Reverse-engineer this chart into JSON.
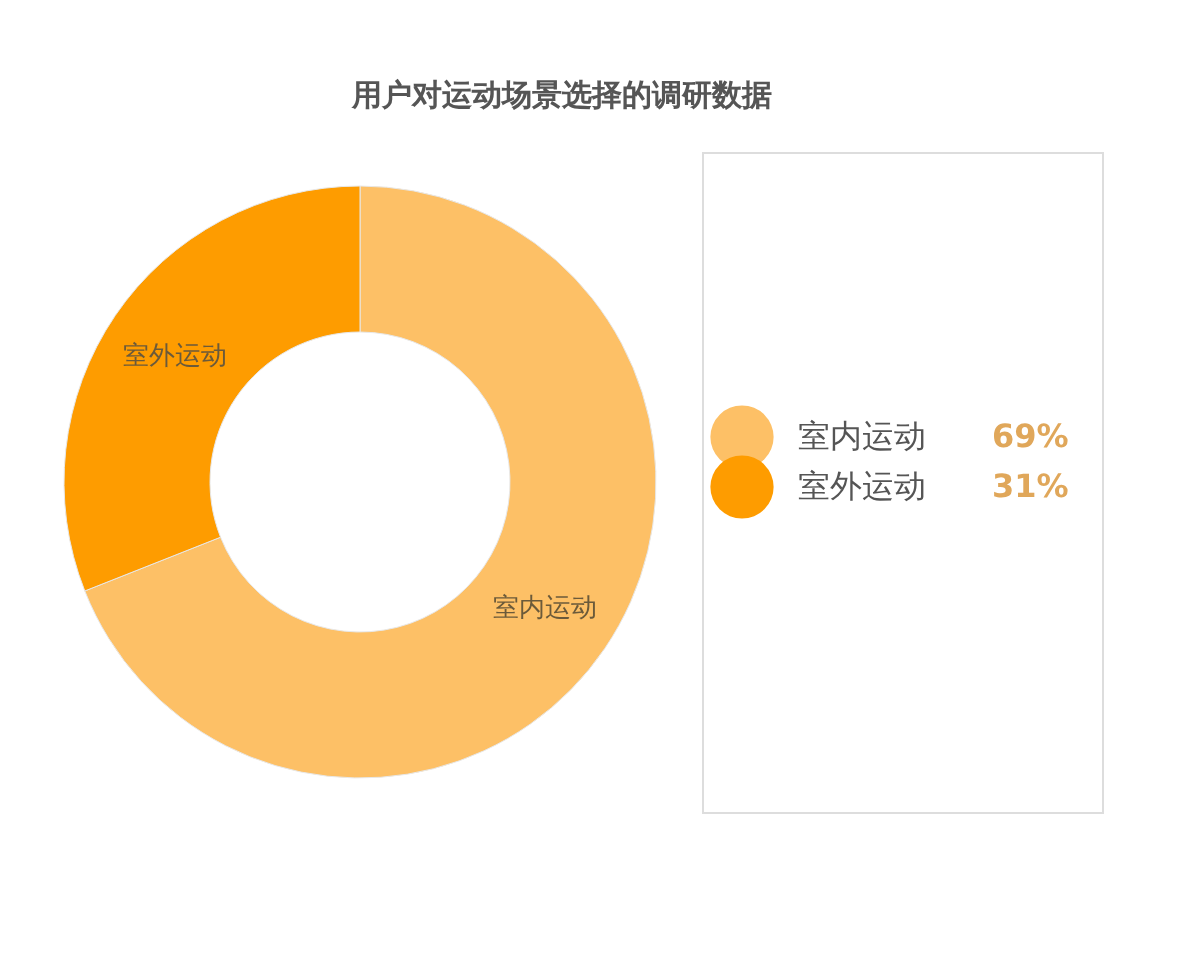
{
  "chart_data": {
    "type": "donut",
    "title": "用户对运动场景选择的调研数据",
    "categories": [
      "室内运动",
      "室外运动"
    ],
    "values": [
      69,
      31
    ],
    "colors": [
      "#fdc066",
      "#fe9c00"
    ],
    "value_labels": [
      "69%",
      "31%"
    ],
    "legend": "right"
  }
}
